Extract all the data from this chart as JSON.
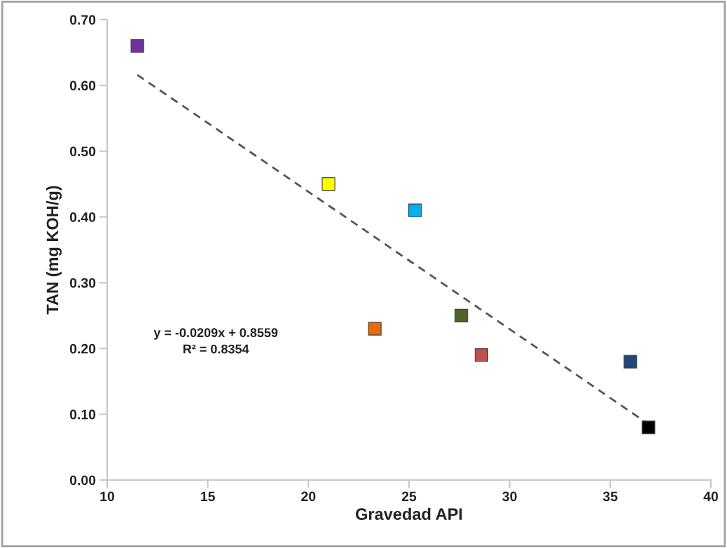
{
  "chart_data": {
    "type": "scatter",
    "xlabel": "Gravedad API",
    "ylabel": "TAN (mg KOH/g)",
    "xlim": [
      10,
      40
    ],
    "xticks": [
      10,
      15,
      20,
      25,
      30,
      35,
      40
    ],
    "ylim": [
      0,
      0.7
    ],
    "yticks": [
      {
        "value": 0,
        "label": "0.00"
      },
      {
        "value": 0.1,
        "label": "0.10"
      },
      {
        "value": 0.2,
        "label": "0.20"
      },
      {
        "value": 0.3,
        "label": "0.30"
      },
      {
        "value": 0.4,
        "label": "0.40"
      },
      {
        "value": 0.5,
        "label": "0.50"
      },
      {
        "value": 0.6,
        "label": "0.60"
      },
      {
        "value": 0.7,
        "label": "0.70"
      }
    ],
    "grid": false,
    "legend": false,
    "series": [
      {
        "marker": "square",
        "x": [
          11.5,
          21.0,
          25.3,
          23.3,
          27.6,
          28.6,
          36.0,
          36.9
        ],
        "values": [
          0.66,
          0.45,
          0.41,
          0.23,
          0.25,
          0.19,
          0.18,
          0.08
        ],
        "colors": [
          "#7030a0",
          "#ffff00",
          "#00b0f0",
          "#e46c0a",
          "#4f6228",
          "#c0504d",
          "#1f497d",
          "#000000"
        ]
      },
      {
        "type": "line",
        "x": [
          11.5,
          37.0
        ],
        "values": [
          0.616,
          0.083
        ],
        "color": "#555555",
        "line_style": "dashed"
      }
    ],
    "annotations": [
      "y = -0.0209x + 0.8559\nR² = 0.8354"
    ]
  }
}
